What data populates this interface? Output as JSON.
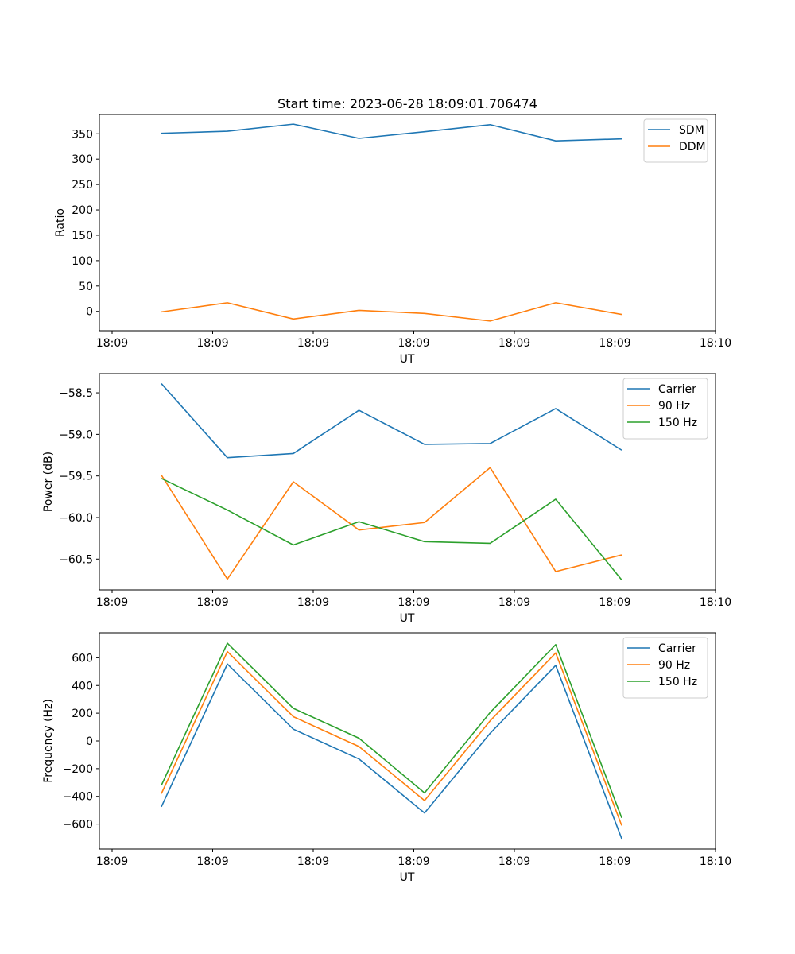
{
  "title": "Start time: 2023-06-28 18:09:01.706474",
  "colors": {
    "blue": "#1f77b4",
    "orange": "#ff7f0e",
    "green": "#2ca02c"
  },
  "chart_data": [
    {
      "type": "line",
      "title": "Start time: 2023-06-28 18:09:01.706474",
      "xlabel": "UT",
      "ylabel": "Ratio",
      "x_tick_labels": [
        "18:09",
        "18:09",
        "18:09",
        "18:09",
        "18:09",
        "18:09",
        "18:10"
      ],
      "y_ticks": [
        0,
        50,
        100,
        150,
        200,
        250,
        300,
        350
      ],
      "ylim": [
        -38,
        388
      ],
      "legend_position": "upper right",
      "series": [
        {
          "name": "SDM",
          "color": "#1f77b4",
          "values": [
            351,
            355,
            369,
            341,
            354,
            368,
            336,
            340
          ]
        },
        {
          "name": "DDM",
          "color": "#ff7f0e",
          "values": [
            -1,
            17,
            -15,
            2,
            -4,
            -19,
            17,
            -6
          ]
        }
      ]
    },
    {
      "type": "line",
      "xlabel": "UT",
      "ylabel": "Power (dB)",
      "x_tick_labels": [
        "18:09",
        "18:09",
        "18:09",
        "18:09",
        "18:09",
        "18:09",
        "18:10"
      ],
      "y_ticks": [
        -60.5,
        -60.0,
        -59.5,
        -59.0,
        -58.5
      ],
      "y_tick_labels": [
        "−60.5",
        "−60.0",
        "−59.5",
        "−59.0",
        "−58.5"
      ],
      "ylim": [
        -60.87,
        -58.27
      ],
      "legend_position": "upper right",
      "series": [
        {
          "name": "Carrier",
          "color": "#1f77b4",
          "values": [
            -58.39,
            -59.28,
            -59.23,
            -58.71,
            -59.12,
            -59.11,
            -58.69,
            -59.19
          ]
        },
        {
          "name": "90 Hz",
          "color": "#ff7f0e",
          "values": [
            -59.49,
            -60.74,
            -59.57,
            -60.15,
            -60.06,
            -59.4,
            -60.65,
            -60.45
          ]
        },
        {
          "name": "150 Hz",
          "color": "#2ca02c",
          "values": [
            -59.53,
            -59.91,
            -60.33,
            -60.05,
            -60.29,
            -60.31,
            -59.78,
            -60.75
          ]
        }
      ]
    },
    {
      "type": "line",
      "xlabel": "UT",
      "ylabel": "Frequency (Hz)",
      "x_tick_labels": [
        "18:09",
        "18:09",
        "18:09",
        "18:09",
        "18:09",
        "18:09",
        "18:10"
      ],
      "y_ticks": [
        -600,
        -400,
        -200,
        0,
        200,
        400,
        600
      ],
      "y_tick_labels": [
        "−600",
        "−400",
        "−200",
        "0",
        "200",
        "400",
        "600"
      ],
      "ylim": [
        -780,
        780
      ],
      "legend_position": "upper right",
      "series": [
        {
          "name": "Carrier",
          "color": "#1f77b4",
          "values": [
            -475,
            555,
            85,
            -130,
            -520,
            55,
            545,
            -705
          ]
        },
        {
          "name": "90 Hz",
          "color": "#ff7f0e",
          "values": [
            -380,
            645,
            175,
            -40,
            -430,
            145,
            635,
            -610
          ]
        },
        {
          "name": "150 Hz",
          "color": "#2ca02c",
          "values": [
            -320,
            705,
            235,
            20,
            -375,
            205,
            695,
            -555
          ]
        }
      ]
    }
  ]
}
